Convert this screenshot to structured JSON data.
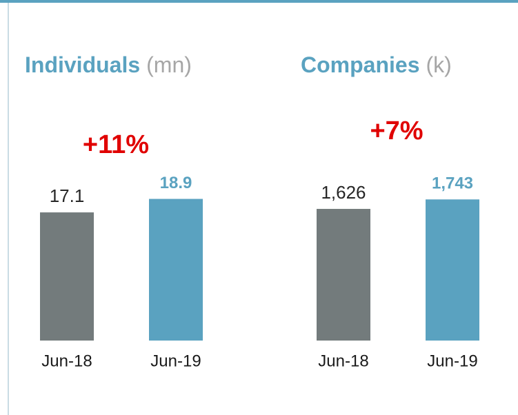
{
  "chart_data": [
    {
      "type": "bar",
      "title": "Individuals",
      "unit": "(mn)",
      "annotation": "+11%",
      "categories": [
        "Jun-18",
        "Jun-19"
      ],
      "values": [
        17.1,
        18.9
      ],
      "colors": [
        "#737b7c",
        "#5aa2c0"
      ],
      "ylim": [
        0,
        19.5
      ]
    },
    {
      "type": "bar",
      "title": "Companies",
      "unit": "(k)",
      "annotation": "+7%",
      "categories": [
        "Jun-18",
        "Jun-19"
      ],
      "values": [
        1626,
        1743
      ],
      "value_labels": [
        "1,626",
        "1,743"
      ],
      "colors": [
        "#737b7c",
        "#5aa2c0"
      ],
      "ylim": [
        0,
        1805
      ]
    }
  ]
}
